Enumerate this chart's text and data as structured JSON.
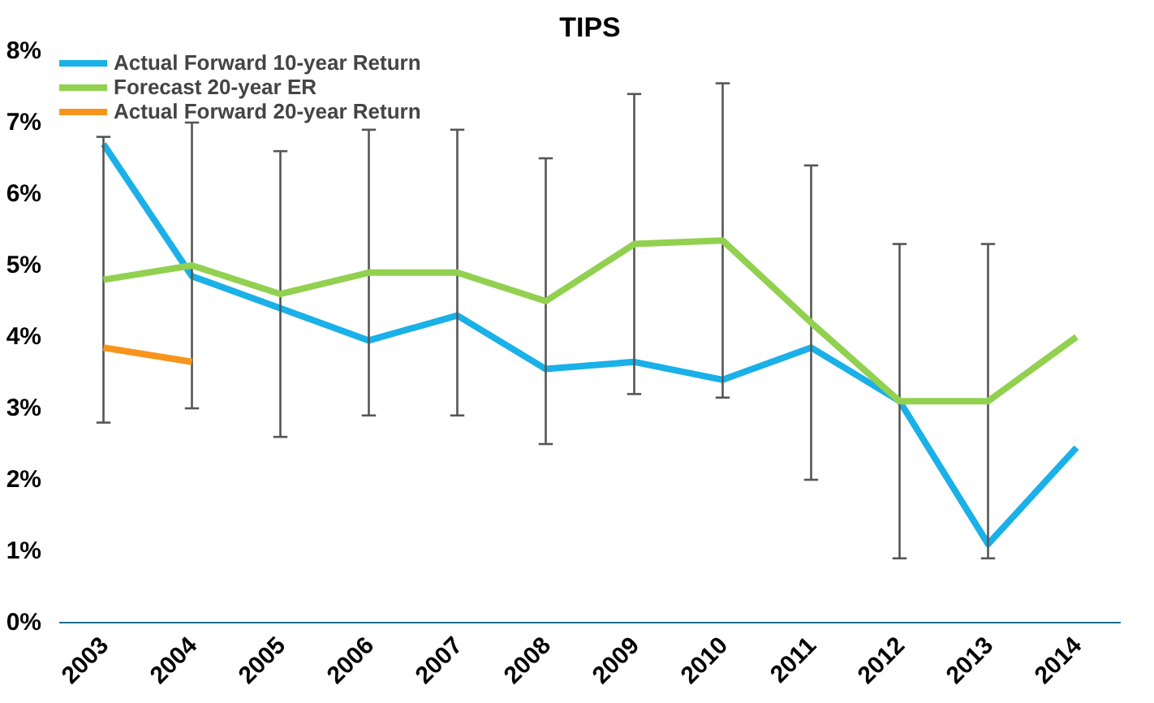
{
  "chart_data": {
    "type": "line",
    "title": "TIPS",
    "categories": [
      "2003",
      "2004",
      "2005",
      "2006",
      "2007",
      "2008",
      "2009",
      "2010",
      "2011",
      "2012",
      "2013",
      "2014"
    ],
    "series": [
      {
        "name": "Actual Forward 10-year Return",
        "color": "#1ab0e8",
        "values": [
          6.7,
          4.85,
          4.4,
          3.95,
          4.3,
          3.55,
          3.65,
          3.4,
          3.85,
          3.1,
          1.1,
          2.45
        ]
      },
      {
        "name": "Forecast 20-year ER",
        "color": "#92d050",
        "values": [
          4.8,
          5.0,
          4.6,
          4.9,
          4.9,
          4.5,
          5.3,
          5.35,
          4.2,
          3.1,
          3.1,
          4.0
        ],
        "errors": [
          2,
          2,
          2,
          2,
          2,
          2,
          2.1,
          2.2,
          2.2,
          2.2,
          2.2,
          null
        ]
      },
      {
        "name": "Actual Forward 20-year Return",
        "color": "#f7941d",
        "values": [
          3.85,
          3.65,
          null,
          null,
          null,
          null,
          null,
          null,
          null,
          null,
          null,
          null
        ]
      }
    ],
    "ylim": [
      0,
      8
    ],
    "yticks": [
      {
        "value": 0,
        "label": "0%"
      },
      {
        "value": 1,
        "label": "1%"
      },
      {
        "value": 2,
        "label": "2%"
      },
      {
        "value": 3,
        "label": "3%"
      },
      {
        "value": 4,
        "label": "4%"
      },
      {
        "value": 5,
        "label": "5%"
      },
      {
        "value": 6,
        "label": "6%"
      },
      {
        "value": 7,
        "label": "7%"
      },
      {
        "value": 8,
        "label": "8%"
      }
    ],
    "grid": false,
    "legend": "top left",
    "marker": "none",
    "line_style": "solid"
  }
}
